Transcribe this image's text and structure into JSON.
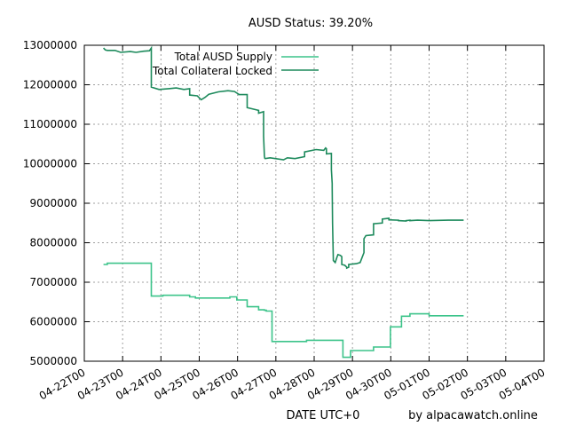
{
  "chart_data": {
    "type": "line",
    "title": "AUSD Status: 39.20%",
    "xlabel": "DATE UTC+0",
    "ylabel": "",
    "credit": "by alpacawatch.online",
    "grid": true,
    "legend_position": "top-left",
    "x_ticks": [
      "04-22T00",
      "04-23T00",
      "04-24T00",
      "04-25T00",
      "04-26T00",
      "04-27T00",
      "04-28T00",
      "04-29T00",
      "04-30T00",
      "05-01T00",
      "05-02T00",
      "05-03T00",
      "05-04T00"
    ],
    "y_ticks": [
      "5000000",
      "6000000",
      "7000000",
      "8000000",
      "9000000",
      "10000000",
      "11000000",
      "12000000",
      "13000000"
    ],
    "xlim": [
      0,
      12
    ],
    "ylim": [
      5000000,
      13000000
    ],
    "series": [
      {
        "name": "Total AUSD Supply",
        "color": "#3cc48a",
        "x": [
          0.5,
          0.6,
          0.6,
          1.75,
          1.75,
          2.05,
          2.05,
          2.75,
          2.75,
          2.9,
          2.9,
          3.8,
          3.8,
          3.98,
          3.98,
          4.25,
          4.25,
          4.55,
          4.55,
          4.7,
          4.7,
          4.75,
          4.75,
          4.9,
          4.9,
          5.8,
          5.8,
          6.75,
          6.75,
          6.95,
          6.95,
          7.55,
          7.55,
          7.99,
          7.99,
          8.28,
          8.28,
          8.5,
          8.5,
          9.0,
          9.0,
          9.9
        ],
        "values": [
          7450000,
          7450000,
          7480000,
          7480000,
          6650000,
          6650000,
          6670000,
          6670000,
          6630000,
          6630000,
          6600000,
          6600000,
          6630000,
          6630000,
          6550000,
          6550000,
          6380000,
          6380000,
          6300000,
          6300000,
          6290000,
          6290000,
          6270000,
          6270000,
          5500000,
          5500000,
          5530000,
          5530000,
          5100000,
          5100000,
          5270000,
          5270000,
          5360000,
          5360000,
          5870000,
          5870000,
          6140000,
          6140000,
          6200000,
          6200000,
          6150000,
          6150000
        ]
      },
      {
        "name": "Total Collateral Locked",
        "color": "#1d8a5c",
        "x": [
          0.5,
          0.55,
          0.6,
          0.8,
          0.95,
          1.2,
          1.35,
          1.55,
          1.7,
          1.75,
          1.75,
          1.95,
          2.2,
          2.4,
          2.6,
          2.75,
          2.75,
          2.95,
          3.05,
          3.15,
          3.25,
          3.5,
          3.75,
          3.92,
          4.03,
          4.03,
          4.25,
          4.25,
          4.55,
          4.55,
          4.68,
          4.68,
          4.7,
          4.71,
          4.72,
          4.85,
          4.85,
          5.2,
          5.3,
          5.5,
          5.75,
          5.75,
          6.05,
          6.25,
          6.3,
          6.32,
          6.32,
          6.45,
          6.45,
          6.47,
          6.47,
          6.48,
          6.5,
          6.55,
          6.6,
          6.62,
          6.68,
          6.72,
          6.72,
          6.8,
          6.85,
          6.85,
          6.9,
          6.9,
          7.1,
          7.1,
          7.2,
          7.3,
          7.3,
          7.35,
          7.55,
          7.55,
          7.78,
          7.78,
          7.95,
          7.95,
          8.2,
          8.2,
          8.4,
          8.4,
          8.5,
          8.5,
          8.7,
          9.0,
          9.5,
          9.9
        ],
        "values": [
          12930000,
          12880000,
          12870000,
          12870000,
          12820000,
          12840000,
          12820000,
          12850000,
          12860000,
          12930000,
          11940000,
          11880000,
          11900000,
          11920000,
          11880000,
          11900000,
          11740000,
          11720000,
          11620000,
          11680000,
          11760000,
          11820000,
          11850000,
          11830000,
          11760000,
          11750000,
          11750000,
          11420000,
          11350000,
          11280000,
          11320000,
          10700000,
          10200000,
          10140000,
          10130000,
          10150000,
          10150000,
          10100000,
          10150000,
          10130000,
          10180000,
          10300000,
          10360000,
          10340000,
          10400000,
          10380000,
          10250000,
          10260000,
          9850000,
          9500000,
          9400000,
          8500000,
          7550000,
          7500000,
          7650000,
          7700000,
          7680000,
          7650000,
          7450000,
          7430000,
          7380000,
          7360000,
          7380000,
          7450000,
          7470000,
          7470000,
          7500000,
          7750000,
          8100000,
          8180000,
          8200000,
          8480000,
          8500000,
          8600000,
          8620000,
          8580000,
          8570000,
          8560000,
          8550000,
          8560000,
          8570000,
          8560000,
          8570000,
          8560000,
          8570000,
          8570000
        ]
      }
    ]
  }
}
